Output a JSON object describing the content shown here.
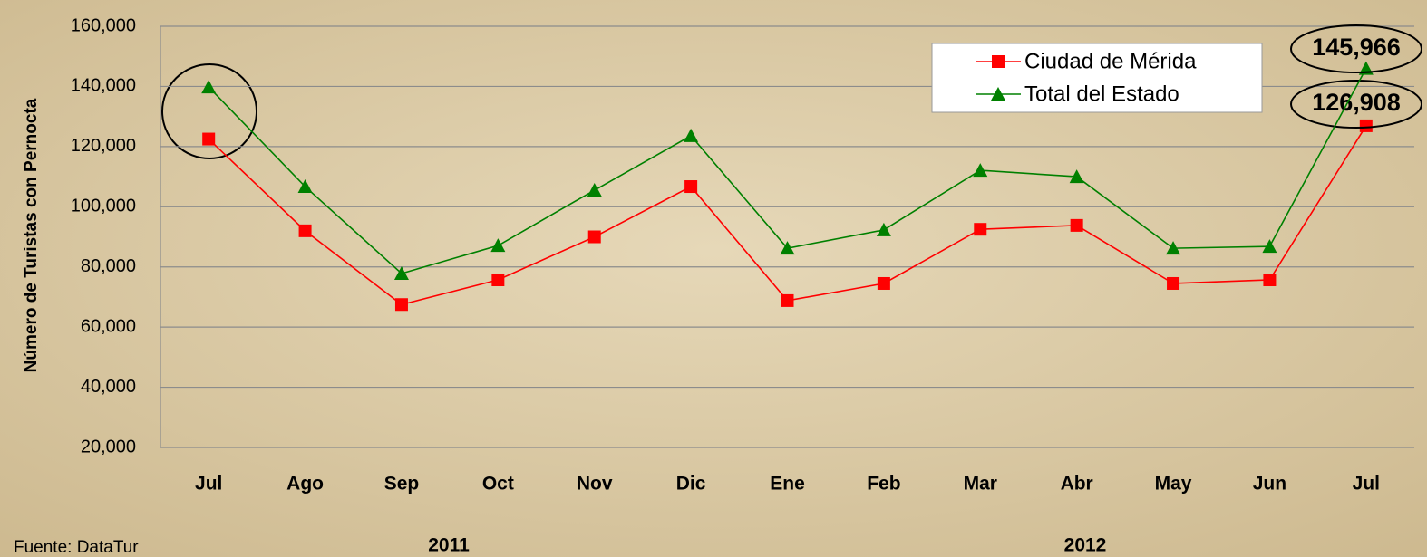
{
  "chart_data": {
    "type": "line",
    "y_label": "Número de Turistas con Pernocta",
    "categories": [
      "Jul",
      "Ago",
      "Sep",
      "Oct",
      "Nov",
      "Dic",
      "Ene",
      "Feb",
      "Mar",
      "Abr",
      "May",
      "Jun",
      "Jul"
    ],
    "series": [
      {
        "name": "Ciudad de Mérida",
        "color": "#ff0000",
        "marker": "square",
        "values": [
          122500,
          92000,
          67500,
          75700,
          90000,
          106700,
          68800,
          74500,
          92500,
          93800,
          74500,
          75700,
          126908
        ],
        "value_labels": [
          null,
          null,
          null,
          null,
          null,
          null,
          null,
          null,
          null,
          null,
          null,
          null,
          "126,908"
        ]
      },
      {
        "name": "Total del Estado",
        "color": "#008000",
        "marker": "triangle",
        "values": [
          139800,
          106700,
          77800,
          87100,
          105500,
          123600,
          86200,
          92300,
          112100,
          110000,
          86200,
          86800,
          145966
        ],
        "value_labels": [
          null,
          null,
          null,
          null,
          null,
          null,
          null,
          null,
          null,
          null,
          null,
          null,
          "145,966"
        ]
      }
    ],
    "ylim": [
      20000,
      160000
    ],
    "yticks": [
      {
        "value": 20000,
        "label": "20,000"
      },
      {
        "value": 40000,
        "label": "40,000"
      },
      {
        "value": 60000,
        "label": "60,000"
      },
      {
        "value": 80000,
        "label": "80,000"
      },
      {
        "value": 100000,
        "label": "100,000"
      },
      {
        "value": 120000,
        "label": "120,000"
      },
      {
        "value": 140000,
        "label": "140,000"
      },
      {
        "value": 160000,
        "label": "160,000"
      }
    ],
    "grid": true,
    "legend": "top-right",
    "source": "Fuente: DataTur",
    "year_labels": [
      "2011",
      "2012"
    ]
  }
}
